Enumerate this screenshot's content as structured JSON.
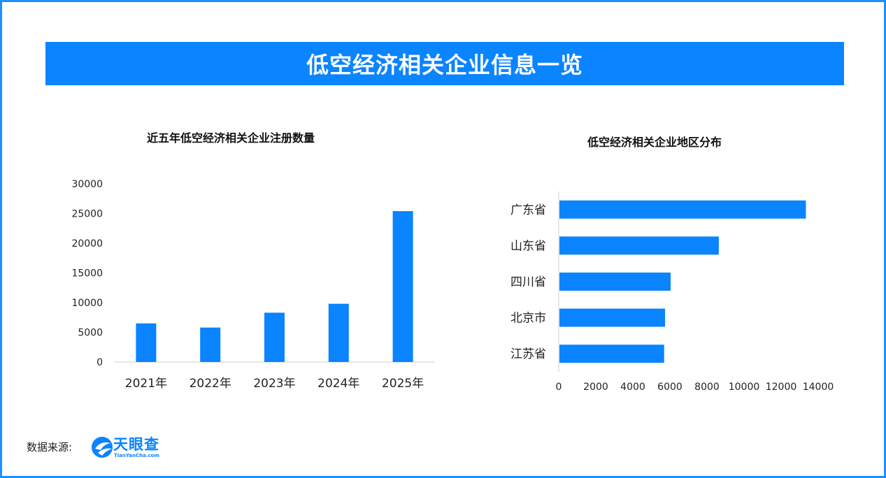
{
  "header": {
    "title": "低空经济相关企业信息一览"
  },
  "source": {
    "label": "数据来源:",
    "logo_text": "天眼查",
    "logo_sub": "TianYanCha.com"
  },
  "colors": {
    "accent": "#0a84ff",
    "frame": "#1e90ff"
  },
  "chart_data": [
    {
      "type": "bar",
      "title": "近五年低空经济相关企业注册数量",
      "categories": [
        "2021年",
        "2022年",
        "2023年",
        "2024年",
        "2025年"
      ],
      "values": [
        6500,
        5800,
        8300,
        9800,
        25400
      ],
      "ylim": [
        0,
        30000
      ],
      "yticks": [
        "0",
        "5000",
        "10000",
        "15000",
        "20000",
        "25000",
        "30000"
      ],
      "grid": false
    },
    {
      "type": "bar",
      "orientation": "horizontal",
      "title": "低空经济相关企业地区分布",
      "categories": [
        "广东省",
        "山东省",
        "四川省",
        "北京市",
        "江苏省"
      ],
      "values": [
        13300,
        8600,
        6000,
        5700,
        5650
      ],
      "xlim": [
        0,
        14000
      ],
      "xticks": [
        "0",
        "2000",
        "4000",
        "6000",
        "8000",
        "10000",
        "12000",
        "14000"
      ],
      "grid": false
    }
  ]
}
